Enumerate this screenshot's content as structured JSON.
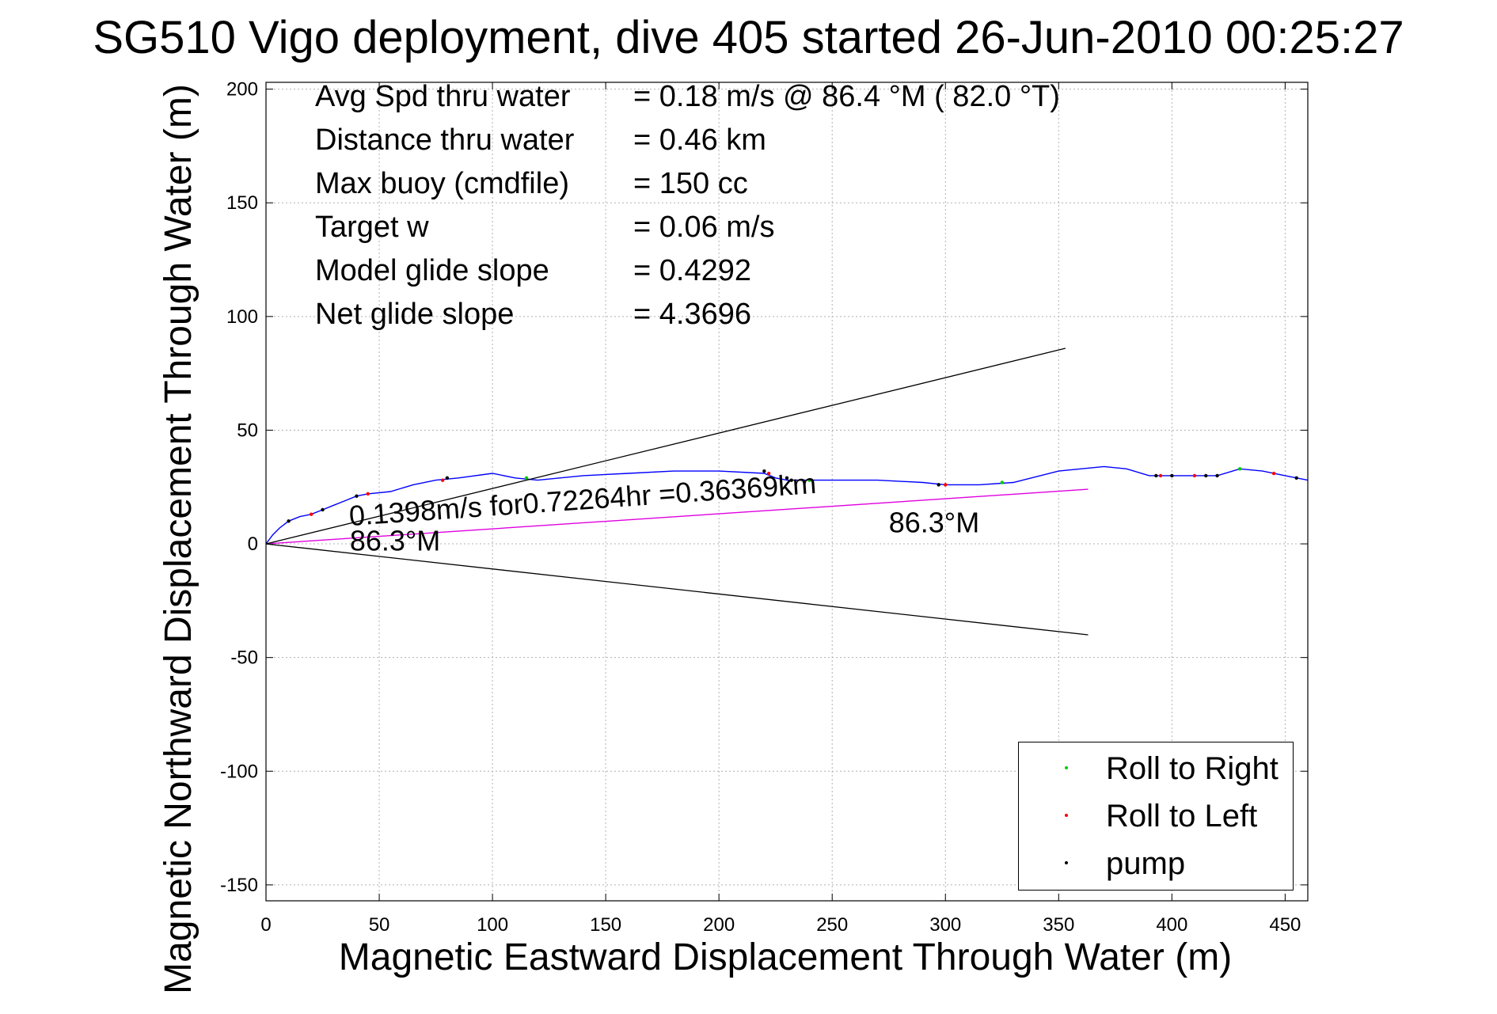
{
  "title": "SG510 Vigo deployment, dive 405 started 26-Jun-2010 00:25:27",
  "stats": [
    {
      "label": "Avg Spd thru water",
      "value": "=  0.18 m/s @  86.4 °M ( 82.0 °T)"
    },
    {
      "label": "Distance thru water",
      "value": "=  0.46 km"
    },
    {
      "label": "Max buoy (cmdfile)",
      "value": "= 150 cc"
    },
    {
      "label": "Target w",
      "value": "= 0.06 m/s"
    },
    {
      "label": "Model glide slope",
      "value": "= 0.4292"
    },
    {
      "label": "Net glide slope",
      "value": "= 4.3696"
    }
  ],
  "legend": [
    {
      "label": "Roll to Right",
      "color": "#00cc00"
    },
    {
      "label": "Roll to Left",
      "color": "#ff0000"
    },
    {
      "label": "pump",
      "color": "#000000"
    }
  ],
  "colors": {
    "track": "#0000ff",
    "heading": "#e000e0",
    "cone": "#000000",
    "grid": "#b0b0b0"
  },
  "chart_data": {
    "type": "line",
    "title": "SG510 Vigo deployment, dive 405 started 26-Jun-2010 00:25:27",
    "xlabel": "Magnetic Eastward Displacement Through Water (m)",
    "ylabel": "Magnetic Northward Displacement Through Water (m)",
    "xlim": [
      0,
      460
    ],
    "ylim": [
      -157,
      203
    ],
    "xticks": [
      0,
      50,
      100,
      150,
      200,
      250,
      300,
      350,
      400,
      450
    ],
    "yticks": [
      -150,
      -100,
      -50,
      0,
      50,
      100,
      150,
      200
    ],
    "grid": true,
    "legend_position": "bottom-right",
    "series": [
      {
        "name": "",
        "kind": "track",
        "x": [
          0,
          3,
          6,
          10,
          15,
          20,
          25,
          30,
          35,
          40,
          45,
          55,
          65,
          75,
          85,
          100,
          110,
          120,
          140,
          160,
          180,
          200,
          220,
          225,
          230,
          250,
          270,
          290,
          300,
          315,
          330,
          350,
          370,
          380,
          390,
          400,
          410,
          420,
          430,
          440,
          450,
          460
        ],
        "y": [
          0,
          4,
          7,
          10,
          12,
          13,
          15,
          17,
          19,
          21,
          22,
          23,
          26,
          28,
          29,
          31,
          29,
          28,
          30,
          31,
          32,
          32,
          31,
          29,
          28,
          28,
          28,
          27,
          26,
          26,
          27,
          32,
          34,
          33,
          30,
          30,
          30,
          30,
          33,
          32,
          30,
          28
        ]
      },
      {
        "name": "",
        "kind": "heading",
        "x": [
          0,
          363
        ],
        "y": [
          0,
          24
        ]
      },
      {
        "name": "",
        "kind": "cone",
        "x": [
          0,
          353
        ],
        "y": [
          0,
          86
        ]
      },
      {
        "name": "",
        "kind": "cone",
        "x": [
          0,
          363
        ],
        "y": [
          0,
          -40
        ]
      }
    ],
    "markers": [
      {
        "name": "Roll to Right",
        "x": [
          115,
          240,
          325,
          430
        ],
        "y": [
          29,
          28,
          27,
          33
        ]
      },
      {
        "name": "Roll to Left",
        "x": [
          20,
          45,
          78,
          222,
          300,
          395,
          410,
          445
        ],
        "y": [
          13,
          22,
          28,
          31,
          26,
          30,
          30,
          31
        ]
      },
      {
        "name": "pump",
        "x": [
          10,
          25,
          40,
          80,
          220,
          230,
          232,
          297,
          393,
          400,
          415,
          420,
          455
        ],
        "y": [
          10,
          15,
          21,
          29,
          32,
          29,
          28,
          26,
          30,
          30,
          30,
          30,
          29
        ]
      }
    ],
    "annotations": [
      {
        "text": "0.1398m/s for0.72264hr =0.36369km",
        "x": 37,
        "y": 8
      },
      {
        "text": "86.3°M",
        "x": 37,
        "y": -3
      },
      {
        "text": "86.3°M",
        "x": 275,
        "y": 5
      }
    ]
  }
}
